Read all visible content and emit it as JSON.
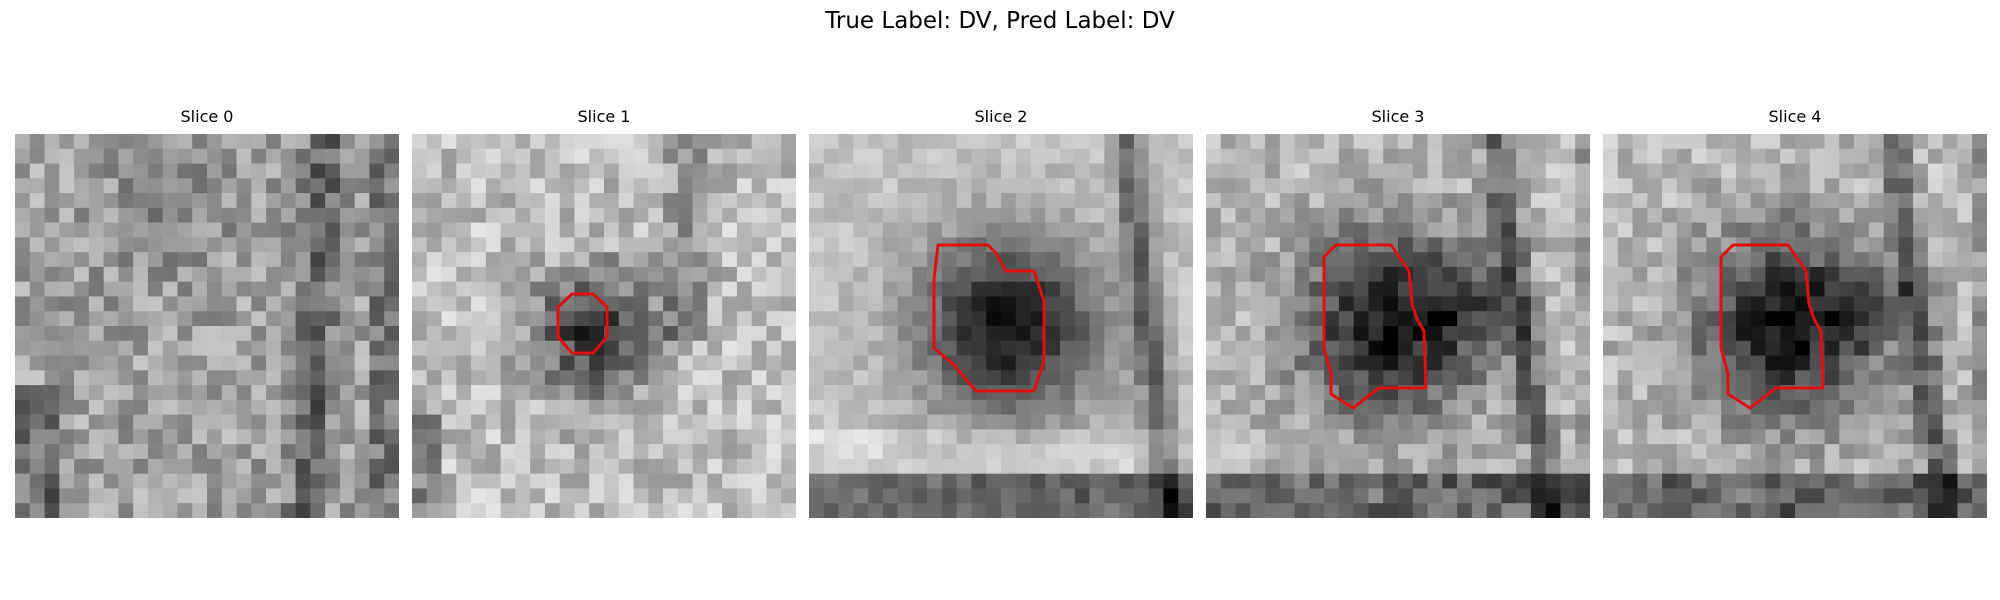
{
  "figure": {
    "title": "True Label: DV, Pred Label: DV"
  },
  "contour_color": "#e01010",
  "slices": [
    {
      "title": "Slice 0",
      "image": "noisy grayscale patch, no lesion outline",
      "has_contour": false
    },
    {
      "title": "Slice 1",
      "image": "small dark round lesion with red outline",
      "has_contour": true
    },
    {
      "title": "Slice 2",
      "image": "large dark round lesion with red outline",
      "has_contour": true
    },
    {
      "title": "Slice 3",
      "image": "dark lesion with irregular red outline",
      "has_contour": true
    },
    {
      "title": "Slice 4",
      "image": "dark lesion with irregular red outline",
      "has_contour": true
    }
  ]
}
